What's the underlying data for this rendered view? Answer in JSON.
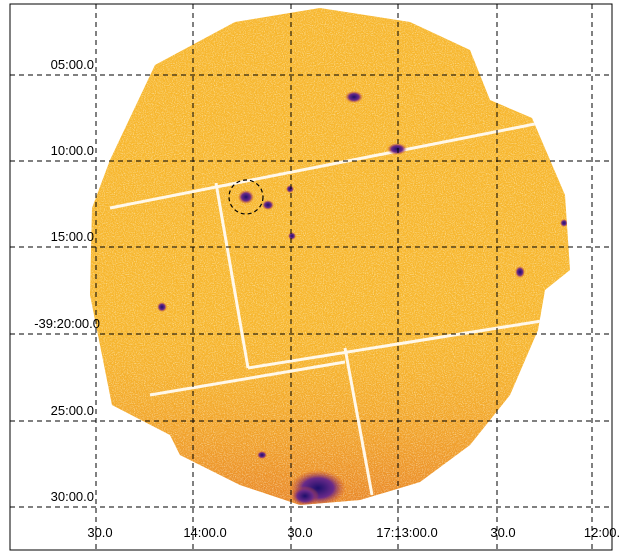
{
  "image": {
    "description_tags": [
      "x-ray-image",
      "sky-coordinate-grid"
    ],
    "colors": {
      "background": "#ffffff",
      "field": "#f7b62c",
      "field_light": "#fde3a0",
      "field_dark": "#e0782a",
      "source": "#3a1f8a",
      "grid": "#000000",
      "chip_gap": "#fff8ea"
    }
  },
  "axes": {
    "y_labels": [
      "05:00.0",
      "10:00.0",
      "15:00.0",
      "-39:20:00.0",
      "25:00.0",
      "30:00.0"
    ],
    "x_labels": [
      "30.0",
      "14:00.0",
      "30.0",
      "17:13:00.0",
      "30.0",
      "12:00."
    ]
  }
}
